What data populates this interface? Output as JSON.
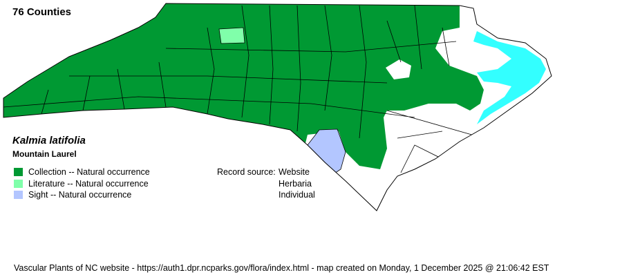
{
  "county_count": "76 Counties",
  "species": {
    "scientific_name": "Kalmia latifolia",
    "common_name": "Mountain Laurel"
  },
  "legend": [
    {
      "label": "Collection -- Natural occurrence",
      "color": "#009933"
    },
    {
      "label": "Literature -- Natural occurrence",
      "color": "#80ffaa"
    },
    {
      "label": "Sight -- Natural occurrence",
      "color": "#b3c6ff"
    }
  ],
  "record_source": {
    "label": "Record source:",
    "values": [
      "Website",
      "Herbaria",
      "Individual"
    ]
  },
  "colors": {
    "absent": "#ffffff",
    "water": "#33ffff",
    "border": "#000000"
  },
  "footer": "Vascular Plants of NC website - https://auth1.dpr.ncparks.gov/flora/index.html - map created on Monday, 1 December 2025 @ 21:06:42 EST"
}
